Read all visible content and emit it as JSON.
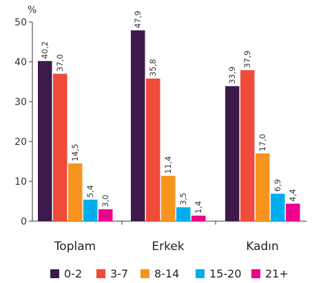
{
  "chart_data": {
    "type": "bar",
    "unit_label": "%",
    "categories": [
      "Toplam",
      "Erkek",
      "Kadın"
    ],
    "series": [
      {
        "name": "0-2",
        "color": "#3d1a4b",
        "values": [
          40.2,
          47.9,
          33.9
        ],
        "labels": [
          "40,2",
          "47,9",
          "33,9"
        ]
      },
      {
        "name": "3-7",
        "color": "#f04a3a",
        "values": [
          37.0,
          35.8,
          37.9
        ],
        "labels": [
          "37,0",
          "35,8",
          "37,9"
        ]
      },
      {
        "name": "8-14",
        "color": "#f7941d",
        "values": [
          14.5,
          11.4,
          17.0
        ],
        "labels": [
          "14,5",
          "11,4",
          "17,0"
        ]
      },
      {
        "name": "15-20",
        "color": "#00aeef",
        "values": [
          5.4,
          3.5,
          6.9
        ],
        "labels": [
          "5,4",
          "3,5",
          "6,9"
        ]
      },
      {
        "name": "21+",
        "color": "#ec008c",
        "values": [
          3.0,
          1.4,
          4.4
        ],
        "labels": [
          "3,0",
          "1,4",
          "4,4"
        ]
      }
    ],
    "ylim": [
      0,
      50
    ],
    "yticks": [
      0,
      10,
      20,
      30,
      40,
      50
    ],
    "grid": false,
    "legend_position": "bottom"
  }
}
